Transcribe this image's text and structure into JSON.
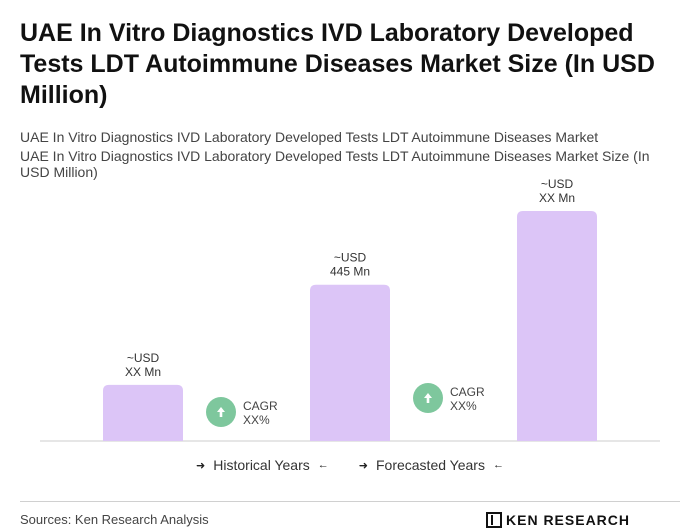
{
  "title": "UAE In Vitro Diagnostics IVD Laboratory Developed Tests LDT Autoimmune Diseases Market Size (In USD Million)",
  "subtitle_1": "UAE In Vitro Diagnostics IVD Laboratory Developed Tests LDT Autoimmune Diseases Market",
  "subtitle_2": "UAE In Vitro Diagnostics IVD Laboratory Developed Tests LDT Autoimmune Diseases Market Size (In USD Million)",
  "colors": {
    "bar": "#dcc5f7",
    "cagr_circle": "#7ec79d",
    "axis": "#cccccc"
  },
  "chart_data": {
    "type": "bar",
    "categories": [
      "",
      "",
      ""
    ],
    "values": [
      160,
      445,
      655
    ],
    "ylim": [
      0,
      700
    ],
    "data_labels": [
      [
        "~USD",
        "XX Mn"
      ],
      [
        "~USD",
        "445 Mn"
      ],
      [
        "~USD",
        "XX Mn"
      ]
    ],
    "cagr_annotations": [
      {
        "label": "CAGR",
        "value": "XX%",
        "icon": "up-arrow-icon"
      },
      {
        "label": "CAGR",
        "value": "XX%",
        "icon": "up-arrow-icon"
      }
    ],
    "grid": false
  },
  "legend": {
    "historical": "Historical Years",
    "forecasted": "Forecasted Years"
  },
  "footer": {
    "source": "Sources: Ken Research Analysis",
    "logo_text": "KEN RESEARCH"
  }
}
